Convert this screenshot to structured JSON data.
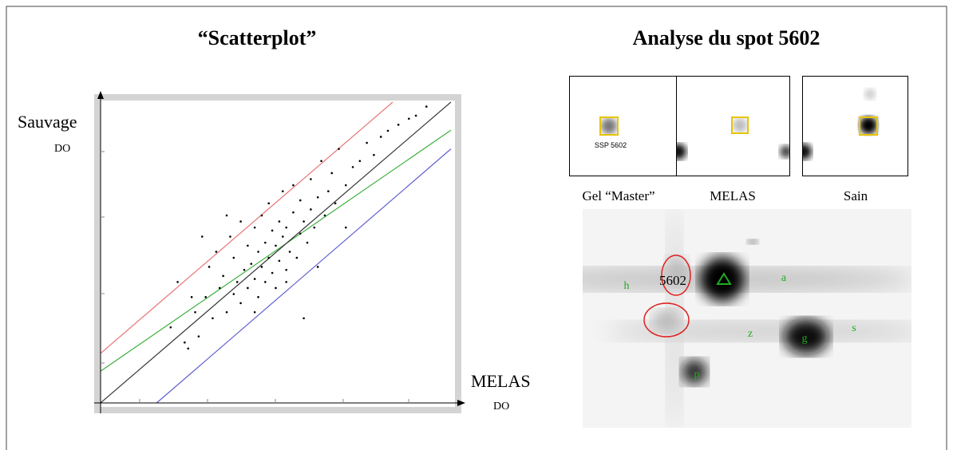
{
  "chart_data": {
    "type": "scatter",
    "title": "“Scatterplot”",
    "x_label": "MELAS",
    "x_unit": "DO",
    "y_label": "Sauvage",
    "y_unit": "DO",
    "xlim": [
      0,
      100
    ],
    "ylim": [
      0,
      100
    ],
    "color": "#000000",
    "x": [
      20,
      22,
      25,
      27,
      28,
      30,
      31,
      32,
      33,
      34,
      35,
      36,
      37,
      38,
      38,
      39,
      40,
      40,
      41,
      42,
      42,
      43,
      44,
      44,
      45,
      45,
      46,
      46,
      47,
      47,
      48,
      48,
      49,
      49,
      50,
      50,
      51,
      51,
      52,
      52,
      53,
      53,
      54,
      55,
      55,
      56,
      57,
      57,
      58,
      59,
      60,
      60,
      61,
      62,
      63,
      64,
      65,
      66,
      67,
      68,
      70,
      72,
      74,
      76,
      78,
      80,
      82,
      85,
      88,
      90,
      93,
      24,
      29,
      36,
      44,
      53,
      62,
      70,
      26,
      58
    ],
    "values": [
      25,
      40,
      18,
      30,
      22,
      35,
      45,
      28,
      50,
      38,
      42,
      30,
      55,
      36,
      48,
      40,
      60,
      33,
      44,
      52,
      38,
      46,
      58,
      41,
      35,
      50,
      62,
      45,
      53,
      40,
      48,
      66,
      57,
      43,
      52,
      38,
      60,
      47,
      70,
      55,
      44,
      58,
      50,
      63,
      72,
      48,
      56,
      67,
      60,
      53,
      74,
      64,
      58,
      68,
      80,
      62,
      70,
      76,
      66,
      84,
      72,
      78,
      80,
      86,
      82,
      88,
      90,
      92,
      94,
      95,
      98,
      20,
      55,
      62,
      30,
      40,
      45,
      58,
      35,
      28
    ],
    "lines": [
      {
        "color": "#e87070",
        "x": [
          0,
          83.4
        ],
        "values": [
          16.4,
          99.5
        ]
      },
      {
        "color": "#40b040",
        "x": [
          0,
          100
        ],
        "values": [
          10.5,
          90.2
        ]
      },
      {
        "color": "#333333",
        "x": [
          0,
          100
        ],
        "values": [
          0,
          99.5
        ]
      },
      {
        "color": "#6060d0",
        "x": [
          16,
          100
        ],
        "values": [
          0,
          84
        ]
      }
    ]
  },
  "gel_panel": {
    "title": "Analyse du spot 5602",
    "spot_tag": "SSP 5602",
    "captions": [
      "Gel “Master”",
      "MELAS",
      "Sain"
    ],
    "spot_id": "5602",
    "spot_letters": [
      "h",
      "a",
      "z",
      "g",
      "s",
      "p"
    ]
  }
}
